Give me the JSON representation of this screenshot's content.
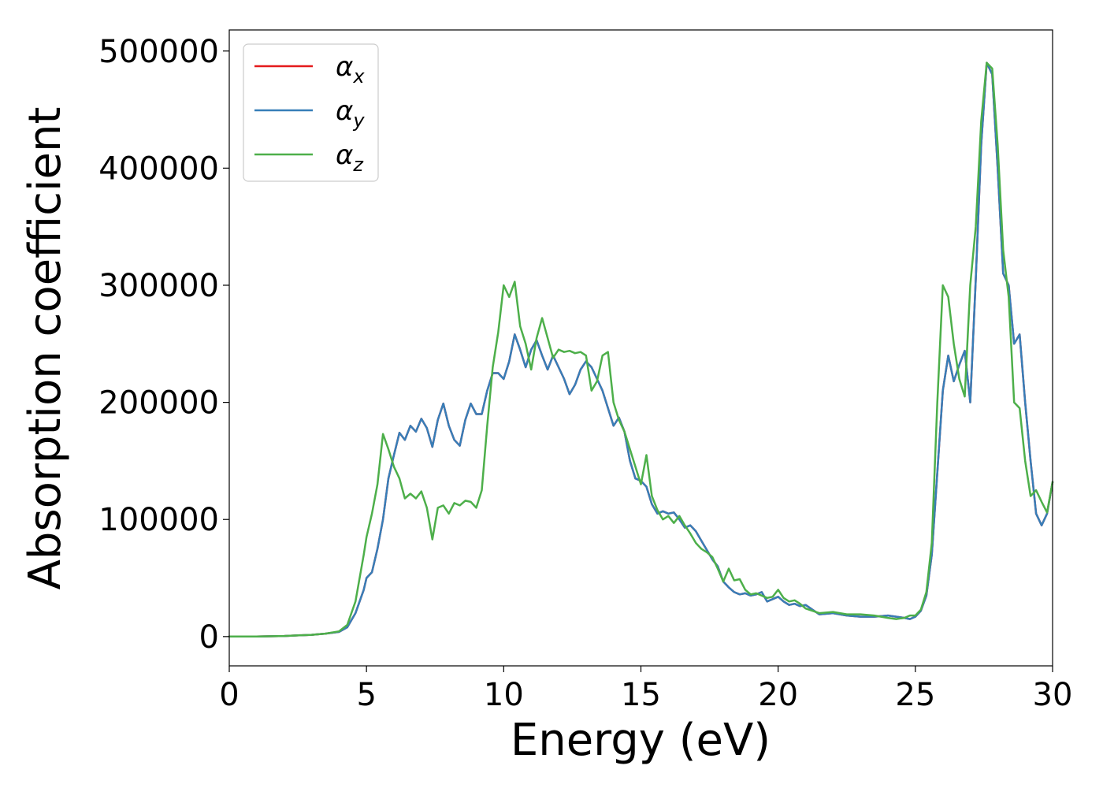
{
  "chart_data": {
    "type": "line",
    "title": "",
    "xlabel": "Energy (eV)",
    "ylabel": "Absorption coefficient",
    "xlim": [
      0,
      30
    ],
    "ylim": [
      -25000,
      518000
    ],
    "xticks": [
      0,
      5,
      10,
      15,
      20,
      25,
      30
    ],
    "xtick_labels": [
      "0",
      "5",
      "10",
      "15",
      "20",
      "25",
      "30"
    ],
    "yticks": [
      0,
      100000,
      200000,
      300000,
      400000,
      500000
    ],
    "ytick_labels": [
      "0",
      "100000",
      "200000",
      "300000",
      "400000",
      "500000"
    ],
    "grid": false,
    "legend_position": "top-left",
    "series": [
      {
        "name": "α_x",
        "legend_symbol": "α",
        "legend_subscript": "x",
        "color": "#e41a1c",
        "x": [
          0,
          1,
          2,
          3,
          3.5,
          4,
          4.3,
          4.6,
          4.9,
          5.0,
          5.2,
          5.4,
          5.6,
          5.8,
          6.0,
          6.2,
          6.4,
          6.6,
          6.8,
          7.0,
          7.2,
          7.4,
          7.6,
          7.8,
          8.0,
          8.2,
          8.4,
          8.6,
          8.8,
          9.0,
          9.2,
          9.4,
          9.6,
          9.8,
          10.0,
          10.2,
          10.4,
          10.6,
          10.8,
          11.0,
          11.2,
          11.4,
          11.6,
          11.8,
          12.0,
          12.2,
          12.4,
          12.6,
          12.8,
          13.0,
          13.2,
          13.4,
          13.6,
          13.8,
          14.0,
          14.2,
          14.4,
          14.6,
          14.8,
          15.0,
          15.2,
          15.4,
          15.6,
          15.8,
          16.0,
          16.2,
          16.4,
          16.6,
          16.8,
          17.0,
          17.2,
          17.4,
          17.6,
          17.8,
          18.0,
          18.2,
          18.4,
          18.6,
          18.8,
          19.0,
          19.2,
          19.4,
          19.6,
          19.8,
          20.0,
          20.2,
          20.4,
          20.6,
          20.8,
          21.0,
          21.5,
          22.0,
          22.5,
          23.0,
          23.5,
          24.0,
          24.3,
          24.6,
          24.8,
          25.0,
          25.2,
          25.4,
          25.6,
          25.8,
          26.0,
          26.2,
          26.4,
          26.6,
          26.8,
          27.0,
          27.2,
          27.4,
          27.6,
          27.8,
          28.0,
          28.2,
          28.4,
          28.6,
          28.8,
          29.0,
          29.2,
          29.4,
          29.6,
          29.8,
          30.0
        ],
        "values": [
          0,
          0,
          500,
          1500,
          2500,
          4000,
          8000,
          20000,
          40000,
          50000,
          55000,
          75000,
          100000,
          135000,
          155000,
          174000,
          168000,
          180000,
          175000,
          186000,
          178000,
          162000,
          185000,
          199000,
          180000,
          168000,
          163000,
          185000,
          199000,
          190000,
          190000,
          210000,
          225000,
          225000,
          220000,
          235000,
          258000,
          245000,
          230000,
          245000,
          253000,
          240000,
          228000,
          240000,
          230000,
          220000,
          207000,
          215000,
          228000,
          235000,
          230000,
          220000,
          210000,
          195000,
          180000,
          187000,
          175000,
          150000,
          135000,
          133000,
          128000,
          113000,
          105000,
          107000,
          105000,
          106000,
          100000,
          93000,
          95000,
          90000,
          82000,
          74000,
          66000,
          60000,
          47000,
          42000,
          38000,
          36000,
          37000,
          35000,
          36000,
          38000,
          30000,
          32000,
          34000,
          30000,
          27000,
          28000,
          26000,
          27000,
          19000,
          20000,
          18000,
          17000,
          17000,
          18000,
          17000,
          16000,
          15000,
          17000,
          22000,
          35000,
          70000,
          140000,
          210000,
          240000,
          218000,
          232000,
          244000,
          200000,
          305000,
          420000,
          490000,
          480000,
          400000,
          310000,
          300000,
          250000,
          258000,
          200000,
          150000,
          105000,
          95000,
          105000,
          132000
        ]
      },
      {
        "name": "α_y",
        "legend_symbol": "α",
        "legend_subscript": "y",
        "color": "#377eb8",
        "x": [
          0,
          1,
          2,
          3,
          3.5,
          4,
          4.3,
          4.6,
          4.9,
          5.0,
          5.2,
          5.4,
          5.6,
          5.8,
          6.0,
          6.2,
          6.4,
          6.6,
          6.8,
          7.0,
          7.2,
          7.4,
          7.6,
          7.8,
          8.0,
          8.2,
          8.4,
          8.6,
          8.8,
          9.0,
          9.2,
          9.4,
          9.6,
          9.8,
          10.0,
          10.2,
          10.4,
          10.6,
          10.8,
          11.0,
          11.2,
          11.4,
          11.6,
          11.8,
          12.0,
          12.2,
          12.4,
          12.6,
          12.8,
          13.0,
          13.2,
          13.4,
          13.6,
          13.8,
          14.0,
          14.2,
          14.4,
          14.6,
          14.8,
          15.0,
          15.2,
          15.4,
          15.6,
          15.8,
          16.0,
          16.2,
          16.4,
          16.6,
          16.8,
          17.0,
          17.2,
          17.4,
          17.6,
          17.8,
          18.0,
          18.2,
          18.4,
          18.6,
          18.8,
          19.0,
          19.2,
          19.4,
          19.6,
          19.8,
          20.0,
          20.2,
          20.4,
          20.6,
          20.8,
          21.0,
          21.5,
          22.0,
          22.5,
          23.0,
          23.5,
          24.0,
          24.3,
          24.6,
          24.8,
          25.0,
          25.2,
          25.4,
          25.6,
          25.8,
          26.0,
          26.2,
          26.4,
          26.6,
          26.8,
          27.0,
          27.2,
          27.4,
          27.6,
          27.8,
          28.0,
          28.2,
          28.4,
          28.6,
          28.8,
          29.0,
          29.2,
          29.4,
          29.6,
          29.8,
          30.0
        ],
        "values": [
          0,
          0,
          500,
          1500,
          2500,
          4000,
          8000,
          20000,
          40000,
          50000,
          55000,
          75000,
          100000,
          135000,
          155000,
          174000,
          168000,
          180000,
          175000,
          186000,
          178000,
          162000,
          185000,
          199000,
          180000,
          168000,
          163000,
          185000,
          199000,
          190000,
          190000,
          210000,
          225000,
          225000,
          220000,
          235000,
          258000,
          245000,
          230000,
          245000,
          253000,
          240000,
          228000,
          240000,
          230000,
          220000,
          207000,
          215000,
          228000,
          235000,
          230000,
          220000,
          210000,
          195000,
          180000,
          187000,
          175000,
          150000,
          135000,
          133000,
          128000,
          113000,
          105000,
          107000,
          105000,
          106000,
          100000,
          93000,
          95000,
          90000,
          82000,
          74000,
          66000,
          60000,
          47000,
          42000,
          38000,
          36000,
          37000,
          35000,
          36000,
          38000,
          30000,
          32000,
          34000,
          30000,
          27000,
          28000,
          26000,
          27000,
          19000,
          20000,
          18000,
          17000,
          17000,
          18000,
          17000,
          16000,
          15000,
          17000,
          22000,
          35000,
          70000,
          140000,
          210000,
          240000,
          218000,
          232000,
          244000,
          200000,
          305000,
          420000,
          490000,
          480000,
          400000,
          310000,
          300000,
          250000,
          258000,
          200000,
          150000,
          105000,
          95000,
          105000,
          132000
        ]
      },
      {
        "name": "α_z",
        "legend_symbol": "α",
        "legend_subscript": "z",
        "color": "#4daf4a",
        "x": [
          0,
          1,
          2,
          3,
          3.5,
          4,
          4.3,
          4.6,
          4.9,
          5.0,
          5.2,
          5.4,
          5.6,
          5.8,
          6.0,
          6.2,
          6.4,
          6.6,
          6.8,
          7.0,
          7.2,
          7.4,
          7.6,
          7.8,
          8.0,
          8.2,
          8.4,
          8.6,
          8.8,
          9.0,
          9.2,
          9.4,
          9.6,
          9.8,
          10.0,
          10.2,
          10.4,
          10.6,
          10.8,
          11.0,
          11.2,
          11.4,
          11.6,
          11.8,
          12.0,
          12.2,
          12.4,
          12.6,
          12.8,
          13.0,
          13.2,
          13.4,
          13.6,
          13.8,
          14.0,
          14.2,
          14.4,
          14.6,
          14.8,
          15.0,
          15.2,
          15.4,
          15.6,
          15.8,
          16.0,
          16.2,
          16.4,
          16.6,
          16.8,
          17.0,
          17.2,
          17.4,
          17.6,
          17.8,
          18.0,
          18.2,
          18.4,
          18.6,
          18.8,
          19.0,
          19.2,
          19.4,
          19.6,
          19.8,
          20.0,
          20.2,
          20.4,
          20.6,
          20.8,
          21.0,
          21.5,
          22.0,
          22.5,
          23.0,
          23.5,
          24.0,
          24.3,
          24.6,
          24.8,
          25.0,
          25.2,
          25.4,
          25.6,
          25.8,
          26.0,
          26.2,
          26.4,
          26.6,
          26.8,
          27.0,
          27.2,
          27.4,
          27.6,
          27.8,
          28.0,
          28.2,
          28.4,
          28.6,
          28.8,
          29.0,
          29.2,
          29.4,
          29.6,
          29.8,
          30.0
        ],
        "values": [
          0,
          0,
          500,
          1500,
          2500,
          4500,
          10000,
          30000,
          70000,
          85000,
          105000,
          130000,
          173000,
          160000,
          145000,
          135000,
          118000,
          122000,
          118000,
          124000,
          110000,
          83000,
          110000,
          112000,
          105000,
          114000,
          112000,
          116000,
          115000,
          110000,
          125000,
          180000,
          230000,
          260000,
          300000,
          290000,
          303000,
          265000,
          250000,
          228000,
          255000,
          272000,
          255000,
          238000,
          245000,
          243000,
          244000,
          242000,
          243000,
          240000,
          210000,
          218000,
          240000,
          243000,
          200000,
          185000,
          175000,
          160000,
          145000,
          130000,
          155000,
          120000,
          108000,
          100000,
          103000,
          97000,
          103000,
          95000,
          88000,
          80000,
          75000,
          72000,
          68000,
          58000,
          47000,
          58000,
          48000,
          49000,
          40000,
          36000,
          37000,
          35000,
          33000,
          34000,
          40000,
          33000,
          30000,
          31000,
          28000,
          24000,
          20000,
          21000,
          19000,
          19000,
          18000,
          16000,
          15000,
          16000,
          18000,
          18000,
          23000,
          38000,
          80000,
          200000,
          300000,
          290000,
          250000,
          220000,
          205000,
          300000,
          350000,
          440000,
          490000,
          485000,
          420000,
          330000,
          290000,
          200000,
          195000,
          150000,
          120000,
          125000,
          115000,
          106000,
          132000
        ]
      }
    ]
  }
}
